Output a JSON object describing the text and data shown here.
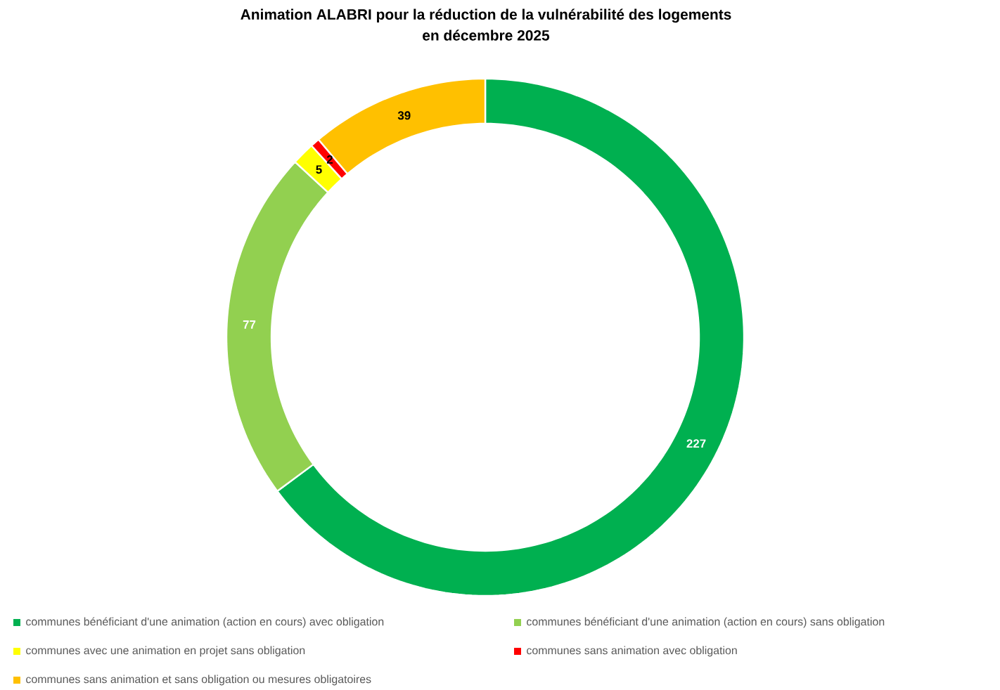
{
  "chart_data": {
    "type": "donut",
    "title": "Animation ALABRI pour la réduction de la vulnérabilité des logements\nen décembre 2025",
    "categories": [
      "communes bénéficiant d'une animation (action en cours) avec obligation",
      "communes bénéficiant d'une animation (action en cours) sans obligation",
      "communes avec une animation en projet  sans obligation",
      "communes sans animation avec obligation",
      "communes sans animation et sans obligation ou mesures obligatoires"
    ],
    "values": [
      227,
      77,
      5,
      2,
      39
    ],
    "colors": [
      "#00b050",
      "#92d050",
      "#ffff00",
      "#ff0000",
      "#ffc000"
    ],
    "data_labels": true,
    "legend": "bottom"
  }
}
